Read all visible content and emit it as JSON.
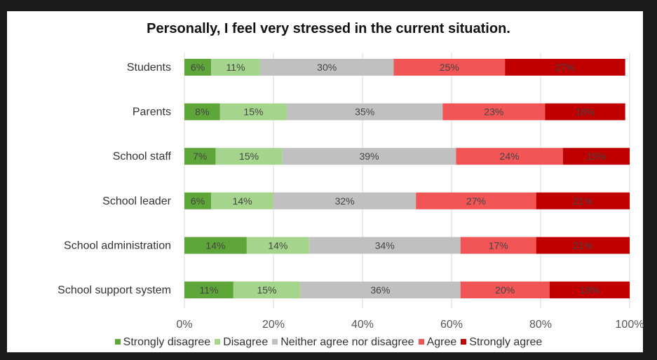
{
  "chart_data": {
    "type": "bar",
    "orientation": "horizontal",
    "stacked": true,
    "title": "Personally, I feel very stressed in the current situation.",
    "categories": [
      "Students",
      "Parents",
      "School staff",
      "School leader",
      "School administration",
      "School support system"
    ],
    "series": [
      {
        "name": "Strongly disagree",
        "color": "#5fa63a",
        "values": [
          6,
          8,
          7,
          6,
          14,
          11
        ]
      },
      {
        "name": "Disagree",
        "color": "#a5d48c",
        "values": [
          11,
          15,
          15,
          14,
          14,
          15
        ]
      },
      {
        "name": "Neither agree nor disagree",
        "color": "#c0c0c0",
        "values": [
          30,
          35,
          39,
          32,
          34,
          36
        ]
      },
      {
        "name": "Agree",
        "color": "#f25555",
        "values": [
          25,
          23,
          24,
          27,
          17,
          20
        ]
      },
      {
        "name": "Strongly agree",
        "color": "#c00000",
        "values": [
          27,
          18,
          15,
          21,
          21,
          18
        ]
      }
    ],
    "xlim": [
      0,
      100
    ],
    "xticks": [
      "0%",
      "20%",
      "40%",
      "60%",
      "80%",
      "100%"
    ],
    "grid": "vertical",
    "legend_position": "bottom"
  }
}
